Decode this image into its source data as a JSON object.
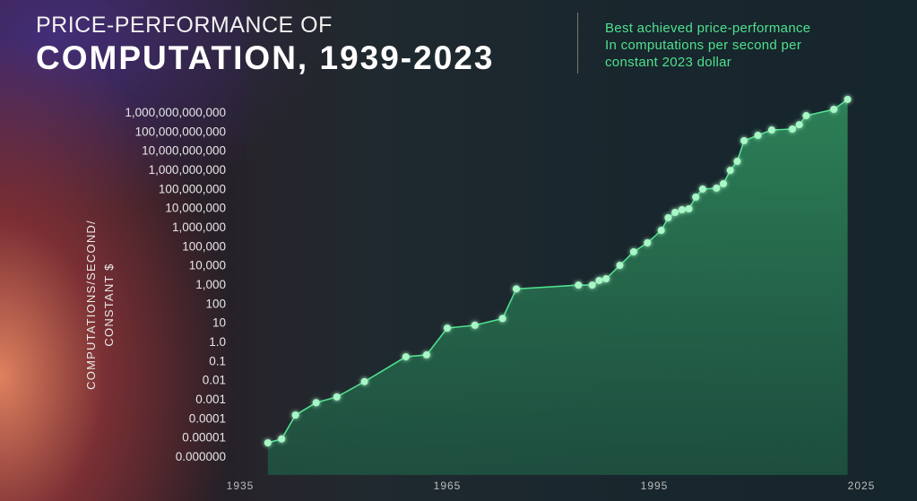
{
  "header": {
    "title_line1": "PRICE-PERFORMANCE OF",
    "title_line2": "COMPUTATION, 1939-2023",
    "subtitle": [
      "Best achieved price-performance",
      "In computations per second per",
      "constant 2023 dollar"
    ]
  },
  "chart_data": {
    "type": "area",
    "title": "PRICE-PERFORMANCE OF COMPUTATION, 1939-2023",
    "ylabel": [
      "COMPUTATIONS/SECOND/",
      "CONSTANT $"
    ],
    "xlabel": "",
    "yscale": "log",
    "ylim_log10": [
      -6,
      12
    ],
    "xlim": [
      1935,
      2025
    ],
    "x_ticks": [
      "1935",
      "1965",
      "1995",
      "2025"
    ],
    "x_tick_values": [
      1935,
      1965,
      1995,
      2025
    ],
    "y_ticks": [
      "1,000,000,000,000",
      "100,000,000,000",
      "10,000,000,000",
      "1,000,000,000",
      "100,000,000",
      "10,000,000",
      "1,000,000",
      "100,000",
      "10,000",
      "1,000",
      "100",
      "10",
      "1.0",
      "0.1",
      "0.01",
      "0.001",
      "0.0001",
      "0.00001",
      "0.000000"
    ],
    "y_tick_log10": [
      12,
      11,
      10,
      9,
      8,
      7,
      6,
      5,
      4,
      3,
      2,
      1,
      0,
      -1,
      -2,
      -3,
      -4,
      -5,
      -6
    ],
    "series": [
      {
        "name": "Best achieved price-performance",
        "x": [
          1939,
          1941,
          1943,
          1946,
          1949,
          1953,
          1959,
          1962,
          1965,
          1969,
          1973,
          1975,
          1984,
          1986,
          1987,
          1988,
          1990,
          1992,
          1994,
          1996,
          1997,
          1998,
          1999,
          2000,
          2001,
          2002,
          2004,
          2005,
          2006,
          2007,
          2008,
          2010,
          2012,
          2015,
          2016,
          2017,
          2021,
          2023
        ],
        "log10_y": [
          -5.3,
          -5.1,
          -3.85,
          -3.2,
          -2.9,
          -2.1,
          -0.8,
          -0.7,
          0.7,
          0.85,
          1.2,
          2.75,
          2.95,
          2.95,
          3.19,
          3.28,
          3.98,
          4.69,
          5.16,
          5.81,
          6.47,
          6.75,
          6.89,
          6.94,
          7.55,
          7.97,
          8.02,
          8.25,
          8.95,
          9.42,
          10.5,
          10.78,
          11.06,
          11.11,
          11.34,
          11.81,
          12.14,
          12.66
        ]
      }
    ],
    "colors": {
      "line": "#4fe08e",
      "point": "#a8f7c6",
      "fill": "#2f8a5c"
    },
    "grid": false
  }
}
